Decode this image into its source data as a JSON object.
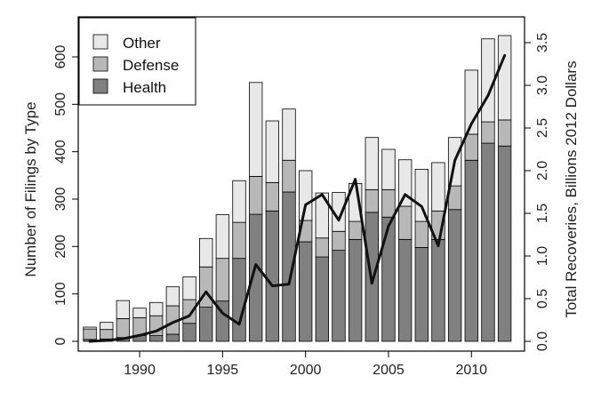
{
  "chart_data": {
    "type": "bar",
    "stacked": true,
    "x": [
      1987,
      1988,
      1989,
      1990,
      1991,
      1992,
      1993,
      1994,
      1995,
      1996,
      1997,
      1998,
      1999,
      2000,
      2001,
      2002,
      2003,
      2004,
      2005,
      2006,
      2007,
      2008,
      2009,
      2010,
      2011,
      2012
    ],
    "xticks": [
      1990,
      1995,
      2000,
      2005,
      2010
    ],
    "xlim": [
      1986.3,
      2013.2
    ],
    "series": [
      {
        "name": "Health",
        "color": "#808080",
        "values": [
          4,
          5,
          8,
          12,
          12,
          15,
          38,
          72,
          85,
          175,
          268,
          275,
          315,
          210,
          178,
          192,
          215,
          272,
          262,
          215,
          198,
          215,
          278,
          382,
          418,
          412
        ]
      },
      {
        "name": "Defense",
        "color": "#b8b8b8",
        "values": [
          22,
          20,
          40,
          38,
          42,
          60,
          50,
          85,
          90,
          76,
          80,
          60,
          67,
          45,
          40,
          40,
          38,
          48,
          58,
          70,
          55,
          60,
          50,
          55,
          45,
          55
        ]
      },
      {
        "name": "Other",
        "color": "#e8e8e8",
        "values": [
          4,
          15,
          38,
          20,
          28,
          40,
          48,
          60,
          92,
          88,
          198,
          130,
          108,
          105,
          95,
          82,
          80,
          110,
          85,
          98,
          110,
          102,
          102,
          135,
          175,
          178
        ]
      }
    ],
    "line": {
      "name": "",
      "axis": "right",
      "values": [
        0.0,
        0.01,
        0.03,
        0.07,
        0.12,
        0.22,
        0.3,
        0.58,
        0.33,
        0.2,
        0.9,
        0.65,
        0.67,
        1.6,
        1.72,
        1.42,
        1.9,
        0.68,
        1.35,
        1.72,
        1.58,
        1.12,
        2.12,
        2.55,
        2.88,
        3.35
      ]
    },
    "ylabel": "Number of Filings by Type",
    "ylim": [
      0,
      660
    ],
    "yticks": [
      0,
      100,
      200,
      300,
      400,
      500,
      600
    ],
    "ylabel_right": "Total Recoveries, Billions 2012 Dollars",
    "ylim_right": [
      0,
      3.5
    ],
    "yticks_right": [
      "0.0",
      "0.5",
      "1.0",
      "1.5",
      "2.0",
      "2.5",
      "3.0",
      "3.5"
    ],
    "legend": {
      "position": "top-left",
      "entries": [
        "Other",
        "Defense",
        "Health"
      ]
    },
    "grid": false
  }
}
